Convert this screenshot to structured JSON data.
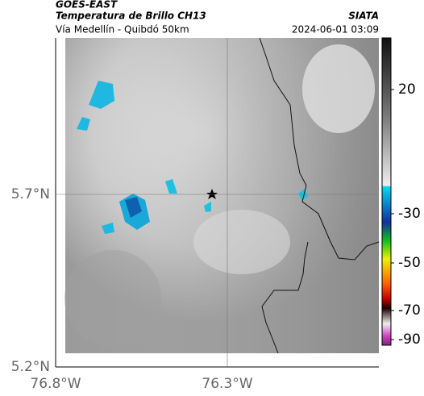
{
  "header": {
    "source": "GOES-EAST",
    "title": "Temperatura de Brillo CH13",
    "org": "SIATA",
    "subtitle": "Vía Medellín - Quibdó 50km",
    "timestamp": "2024-06-01 03:09"
  },
  "map": {
    "lat_ticks": [
      "5.7°N",
      "5.2°N"
    ],
    "lon_ticks": [
      "76.8°W",
      "76.3°W"
    ]
  },
  "colorbar": {
    "ticks": [
      20,
      -30,
      -50,
      -70,
      -90
    ]
  }
}
